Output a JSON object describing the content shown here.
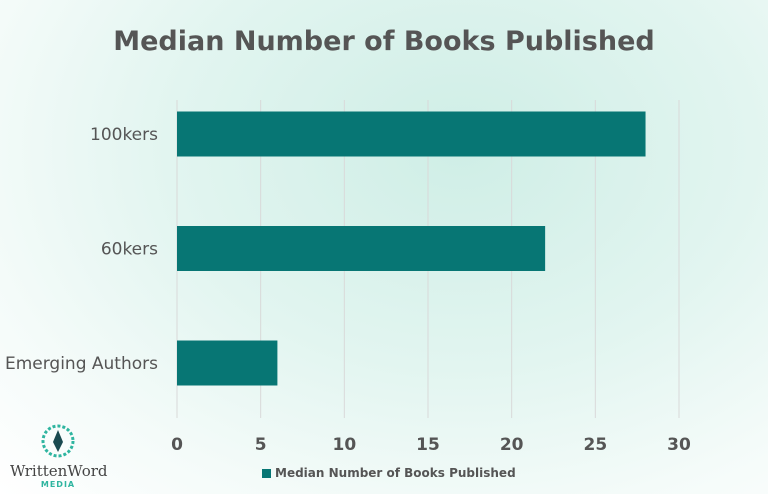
{
  "chart_data": {
    "type": "bar",
    "orientation": "horizontal",
    "title": "Median Number of Books Published",
    "categories": [
      "100kers",
      "60kers",
      "Emerging Authors"
    ],
    "series": [
      {
        "name": "Median Number of Books Published",
        "values": [
          28,
          22,
          6
        ],
        "color": "#077674"
      }
    ],
    "xlim": [
      0,
      30
    ],
    "xticks": [
      0,
      5,
      10,
      15,
      20,
      25,
      30
    ],
    "xlabel": "",
    "ylabel": "",
    "grid": true,
    "legend": "bottom"
  },
  "logo": {
    "name": "WrittenWord",
    "sub": "MEDIA",
    "color": "#2fb5a0"
  }
}
